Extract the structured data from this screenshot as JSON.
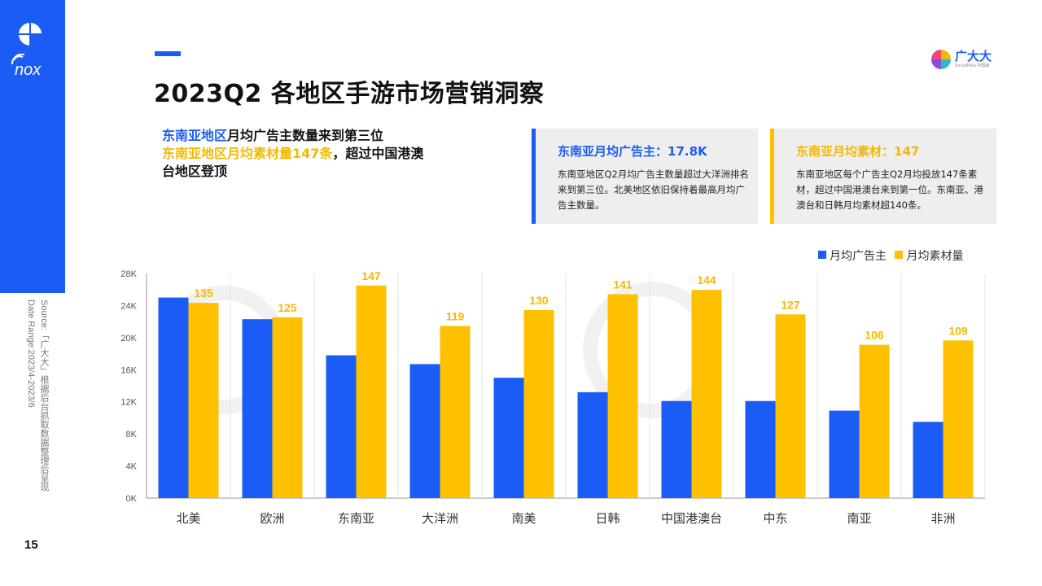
{
  "page_title": "2023Q2 各地区手游市场营销洞察",
  "headline": {
    "line1_blue": "东南亚地区",
    "line1_black": "月均广告主数量来到第三位",
    "line2_yellow": "东南亚地区月均素材量147条",
    "line2_black": "，超过中国港澳台地区登顶"
  },
  "cards": [
    {
      "title": "东南亚月均广告主：17.8K",
      "body": "东南亚地区Q2月均广告主数量超过大洋洲排名来到第三位。北美地区依旧保持着最高月均广告主数量。"
    },
    {
      "title": "东南亚月均素材：147",
      "body": "东南亚地区每个广告主Q2月均投放147条素材，超过中国港澳台来到第一位。东南亚、港澳台和日韩月均素材超140条。"
    }
  ],
  "brand": {
    "name": "广大大",
    "sub": "SocialPeta 中国版"
  },
  "nox_word": "nox",
  "source": "Source:「广大大」根据后台抓取数据整理后呈现",
  "date_range": "Date Range:2023/4-2023/6",
  "page_number": "15",
  "colors": {
    "blue": "#1a5cf5",
    "yellow": "#ffc000",
    "label_yellow": "#f5b800"
  },
  "chart_data": {
    "type": "bar",
    "categories": [
      "北美",
      "欧洲",
      "东南亚",
      "大洋洲",
      "南美",
      "日韩",
      "中国港澳台",
      "中东",
      "南亚",
      "非洲"
    ],
    "series": [
      {
        "name": "月均广告主",
        "values": [
          25.0,
          22.3,
          17.8,
          16.7,
          15.0,
          13.2,
          12.1,
          12.1,
          10.9,
          9.5
        ],
        "color": "#1a5cf5"
      },
      {
        "name": "月均素材量",
        "values": [
          135,
          125,
          147,
          119,
          130,
          141,
          144,
          127,
          106,
          109
        ],
        "color": "#ffc000"
      }
    ],
    "y_ticks": [
      "0K",
      "4K",
      "8K",
      "12K",
      "16K",
      "20K",
      "24K",
      "28K"
    ],
    "ylim": [
      0,
      28
    ],
    "ylabel": "",
    "xlabel": "",
    "grid": "vertical separators between categories",
    "legend": "top-right"
  }
}
